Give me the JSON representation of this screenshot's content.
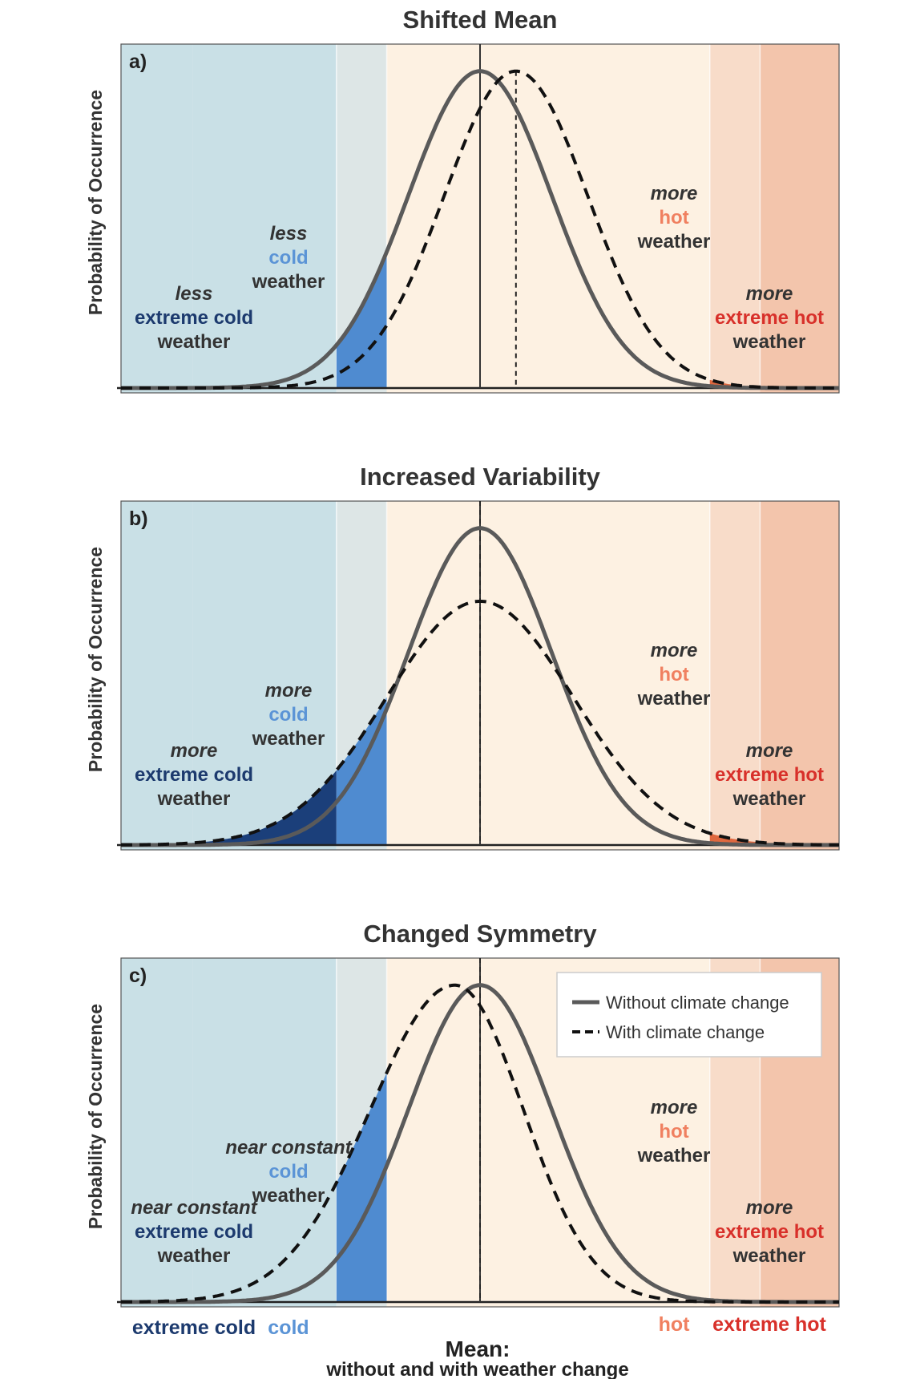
{
  "colors": {
    "extreme_cold_band": "#c9e0e6",
    "cold_band": "#dde6e6",
    "normal_band": "#fdf1e2",
    "hot_band": "#f8dcc9",
    "extreme_hot_band": "#f3c5ac",
    "extreme_cold_fill": "#1b3f7a",
    "cold_fill": "#4f8bd0",
    "hot_fill": "#e0683f",
    "extreme_hot_fill": "#d93a25",
    "curve": "#5a5a5a",
    "text_dark": "#333333",
    "text_navy": "#1c3a6e",
    "text_cold": "#5b94d6",
    "text_hot": "#f08060",
    "text_extreme_hot": "#d8302a"
  },
  "x_axis": {
    "categories": [
      "extreme cold",
      "cold",
      "hot",
      "extreme hot"
    ],
    "mean_label": "Mean:",
    "mean_sublabel": "without and with weather change"
  },
  "legend": {
    "without": "Without climate change",
    "with": "With climate change"
  },
  "chart_data": [
    {
      "type": "line",
      "panel": "a)",
      "title": "Shifted Mean",
      "ylabel": "Probability of Occurrence",
      "band_edges": [
        -4.0,
        -2.0,
        -1.3,
        3.2,
        3.9
      ],
      "xlim": [
        -5.0,
        5.0
      ],
      "ylim": [
        0,
        1.05
      ],
      "series": [
        {
          "name": "Without climate change",
          "style": "solid",
          "mean": 0.0,
          "sd": 1.0,
          "skew": 0
        },
        {
          "name": "With climate change",
          "style": "dashed",
          "mean": 0.5,
          "sd": 1.0,
          "skew": 0
        }
      ],
      "shaded_regions": [
        "cold",
        "hot",
        "extreme hot"
      ],
      "annotations": {
        "extreme_cold": [
          "less",
          "extreme cold",
          "weather"
        ],
        "cold": [
          "less",
          "cold",
          "weather"
        ],
        "hot": [
          "more",
          "hot",
          "weather"
        ],
        "extreme_hot": [
          "more",
          "extreme hot",
          "weather"
        ]
      }
    },
    {
      "type": "line",
      "panel": "b)",
      "title": "Increased Variability",
      "ylabel": "Probability of Occurrence",
      "band_edges": [
        -4.0,
        -2.0,
        -1.3,
        3.2,
        3.9
      ],
      "xlim": [
        -5.0,
        5.0
      ],
      "ylim": [
        0,
        1.05
      ],
      "series": [
        {
          "name": "Without climate change",
          "style": "solid",
          "mean": 0.0,
          "sd": 1.0,
          "skew": 0
        },
        {
          "name": "With climate change",
          "style": "dashed",
          "mean": 0.0,
          "sd": 1.3,
          "skew": 0
        }
      ],
      "shaded_regions": [
        "extreme cold",
        "cold",
        "hot",
        "extreme hot"
      ],
      "annotations": {
        "extreme_cold": [
          "more",
          "extreme cold",
          "weather"
        ],
        "cold": [
          "more",
          "cold",
          "weather"
        ],
        "hot": [
          "more",
          "hot",
          "weather"
        ],
        "extreme_hot": [
          "more",
          "extreme hot",
          "weather"
        ]
      }
    },
    {
      "type": "line",
      "panel": "c)",
      "title": "Changed Symmetry",
      "ylabel": "Probability of Occurrence",
      "band_edges": [
        -4.0,
        -2.0,
        -1.3,
        3.2,
        3.9
      ],
      "xlim": [
        -5.0,
        5.0
      ],
      "ylim": [
        0,
        1.05
      ],
      "series": [
        {
          "name": "Without climate change",
          "style": "solid",
          "mean": 0.0,
          "sd": 1.0,
          "skew": 0
        },
        {
          "name": "With climate change",
          "style": "dashed",
          "mean": -0.35,
          "sd": 1.0,
          "skew": 0.3
        }
      ],
      "shaded_regions": [
        "cold",
        "hot",
        "extreme hot"
      ],
      "annotations": {
        "extreme_cold": [
          "near constant",
          "extreme cold",
          "weather"
        ],
        "cold": [
          "near constant",
          "cold",
          "weather"
        ],
        "hot": [
          "more",
          "hot",
          "weather"
        ],
        "extreme_hot": [
          "more",
          "extreme hot",
          "weather"
        ]
      }
    }
  ]
}
